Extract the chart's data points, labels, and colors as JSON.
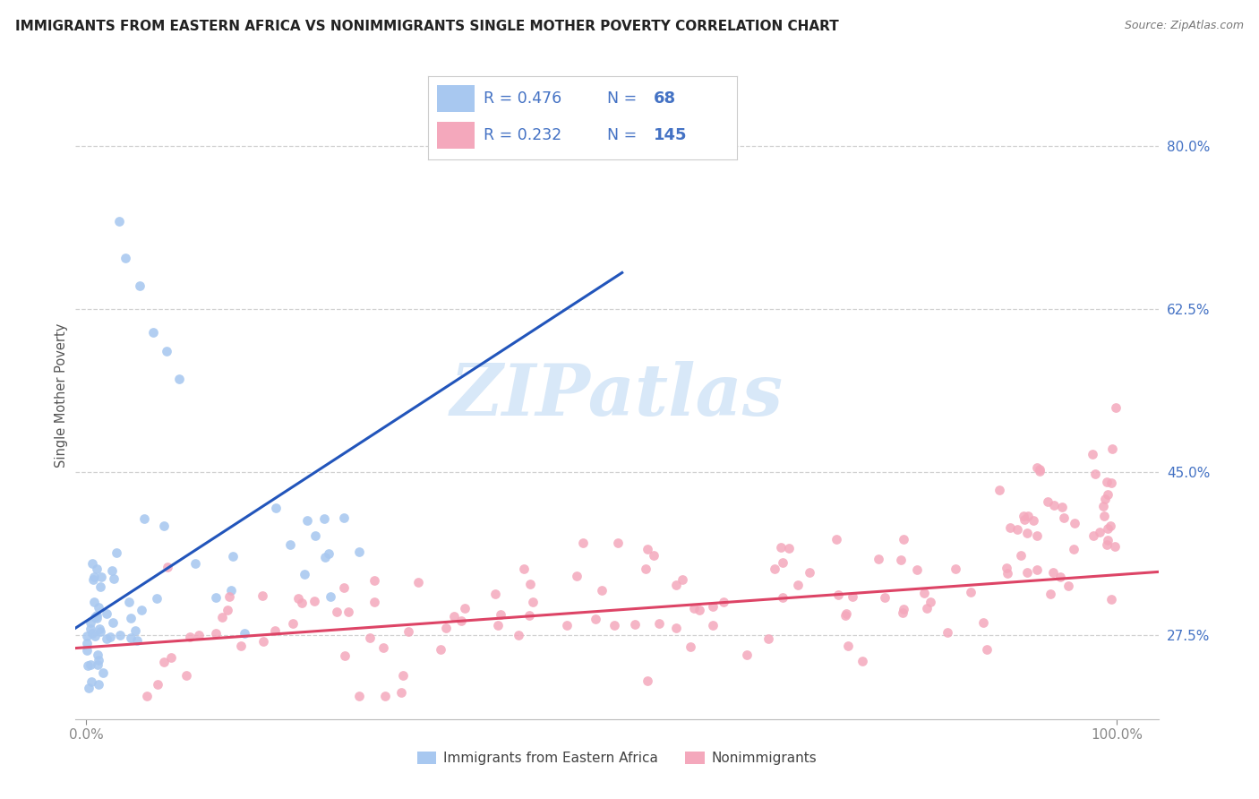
{
  "title": "IMMIGRANTS FROM EASTERN AFRICA VS NONIMMIGRANTS SINGLE MOTHER POVERTY CORRELATION CHART",
  "source": "Source: ZipAtlas.com",
  "ylabel": "Single Mother Poverty",
  "xlim": [
    -0.01,
    1.04
  ],
  "ylim": [
    0.185,
    0.88
  ],
  "yticks": [
    0.275,
    0.45,
    0.625,
    0.8
  ],
  "ytick_labels": [
    "27.5%",
    "45.0%",
    "62.5%",
    "80.0%"
  ],
  "xticks": [
    0.0,
    1.0
  ],
  "xtick_labels": [
    "0.0%",
    "100.0%"
  ],
  "legend_R1": "0.476",
  "legend_N1": "68",
  "legend_R2": "0.232",
  "legend_N2": "145",
  "color_blue": "#a8c8f0",
  "color_pink": "#f4a8bc",
  "line_blue": "#2255bb",
  "line_pink": "#dd4466",
  "legend_text_color": "#4472c4",
  "watermark_color": "#d8e8f8",
  "title_color": "#222222",
  "source_color": "#777777",
  "ylabel_color": "#555555",
  "tick_color": "#4472c4",
  "grid_color": "#cccccc",
  "background": "#ffffff"
}
